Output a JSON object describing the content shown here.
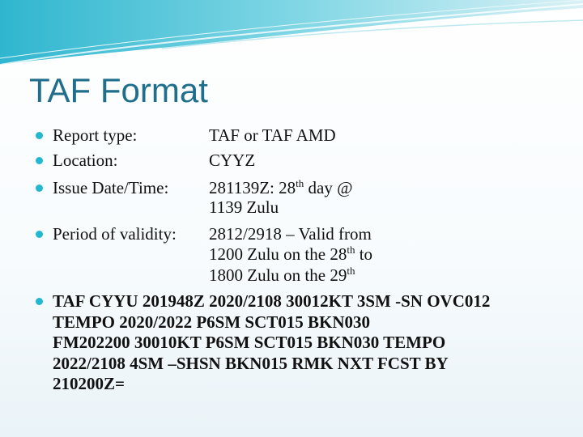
{
  "slide": {
    "title": "TAF Format",
    "accent_color": "#1f6e8c",
    "bullet_color": "#22b8cf",
    "items": [
      {
        "label": "Report type:",
        "value": [
          "TAF or TAF AMD"
        ]
      },
      {
        "label": "Location:",
        "value": [
          "CYYZ"
        ]
      },
      {
        "label": "Issue Date/Time:",
        "value_parts": {
          "a": "281139Z: 28",
          "sup": "th",
          "b": " day @"
        },
        "value2": "1139 Zulu"
      },
      {
        "label": "Period of validity:",
        "line1": "2812/2918 – Valid from",
        "line2": {
          "a": "1200 Zulu on the 28",
          "sup": "th",
          "b": " to"
        },
        "line3": {
          "a": "1800 Zulu on the 29",
          "sup": "th"
        }
      }
    ],
    "taf_example": [
      "TAF CYYU 201948Z 2020/2108 30012KT 3SM -SN OVC012",
      "TEMPO 2020/2022 P6SM SCT015 BKN030",
      "FM202200 30010KT P6SM SCT015 BKN030 TEMPO",
      "2022/2108 4SM –SHSN BKN015 RMK NXT FCST BY",
      "210200Z="
    ]
  }
}
